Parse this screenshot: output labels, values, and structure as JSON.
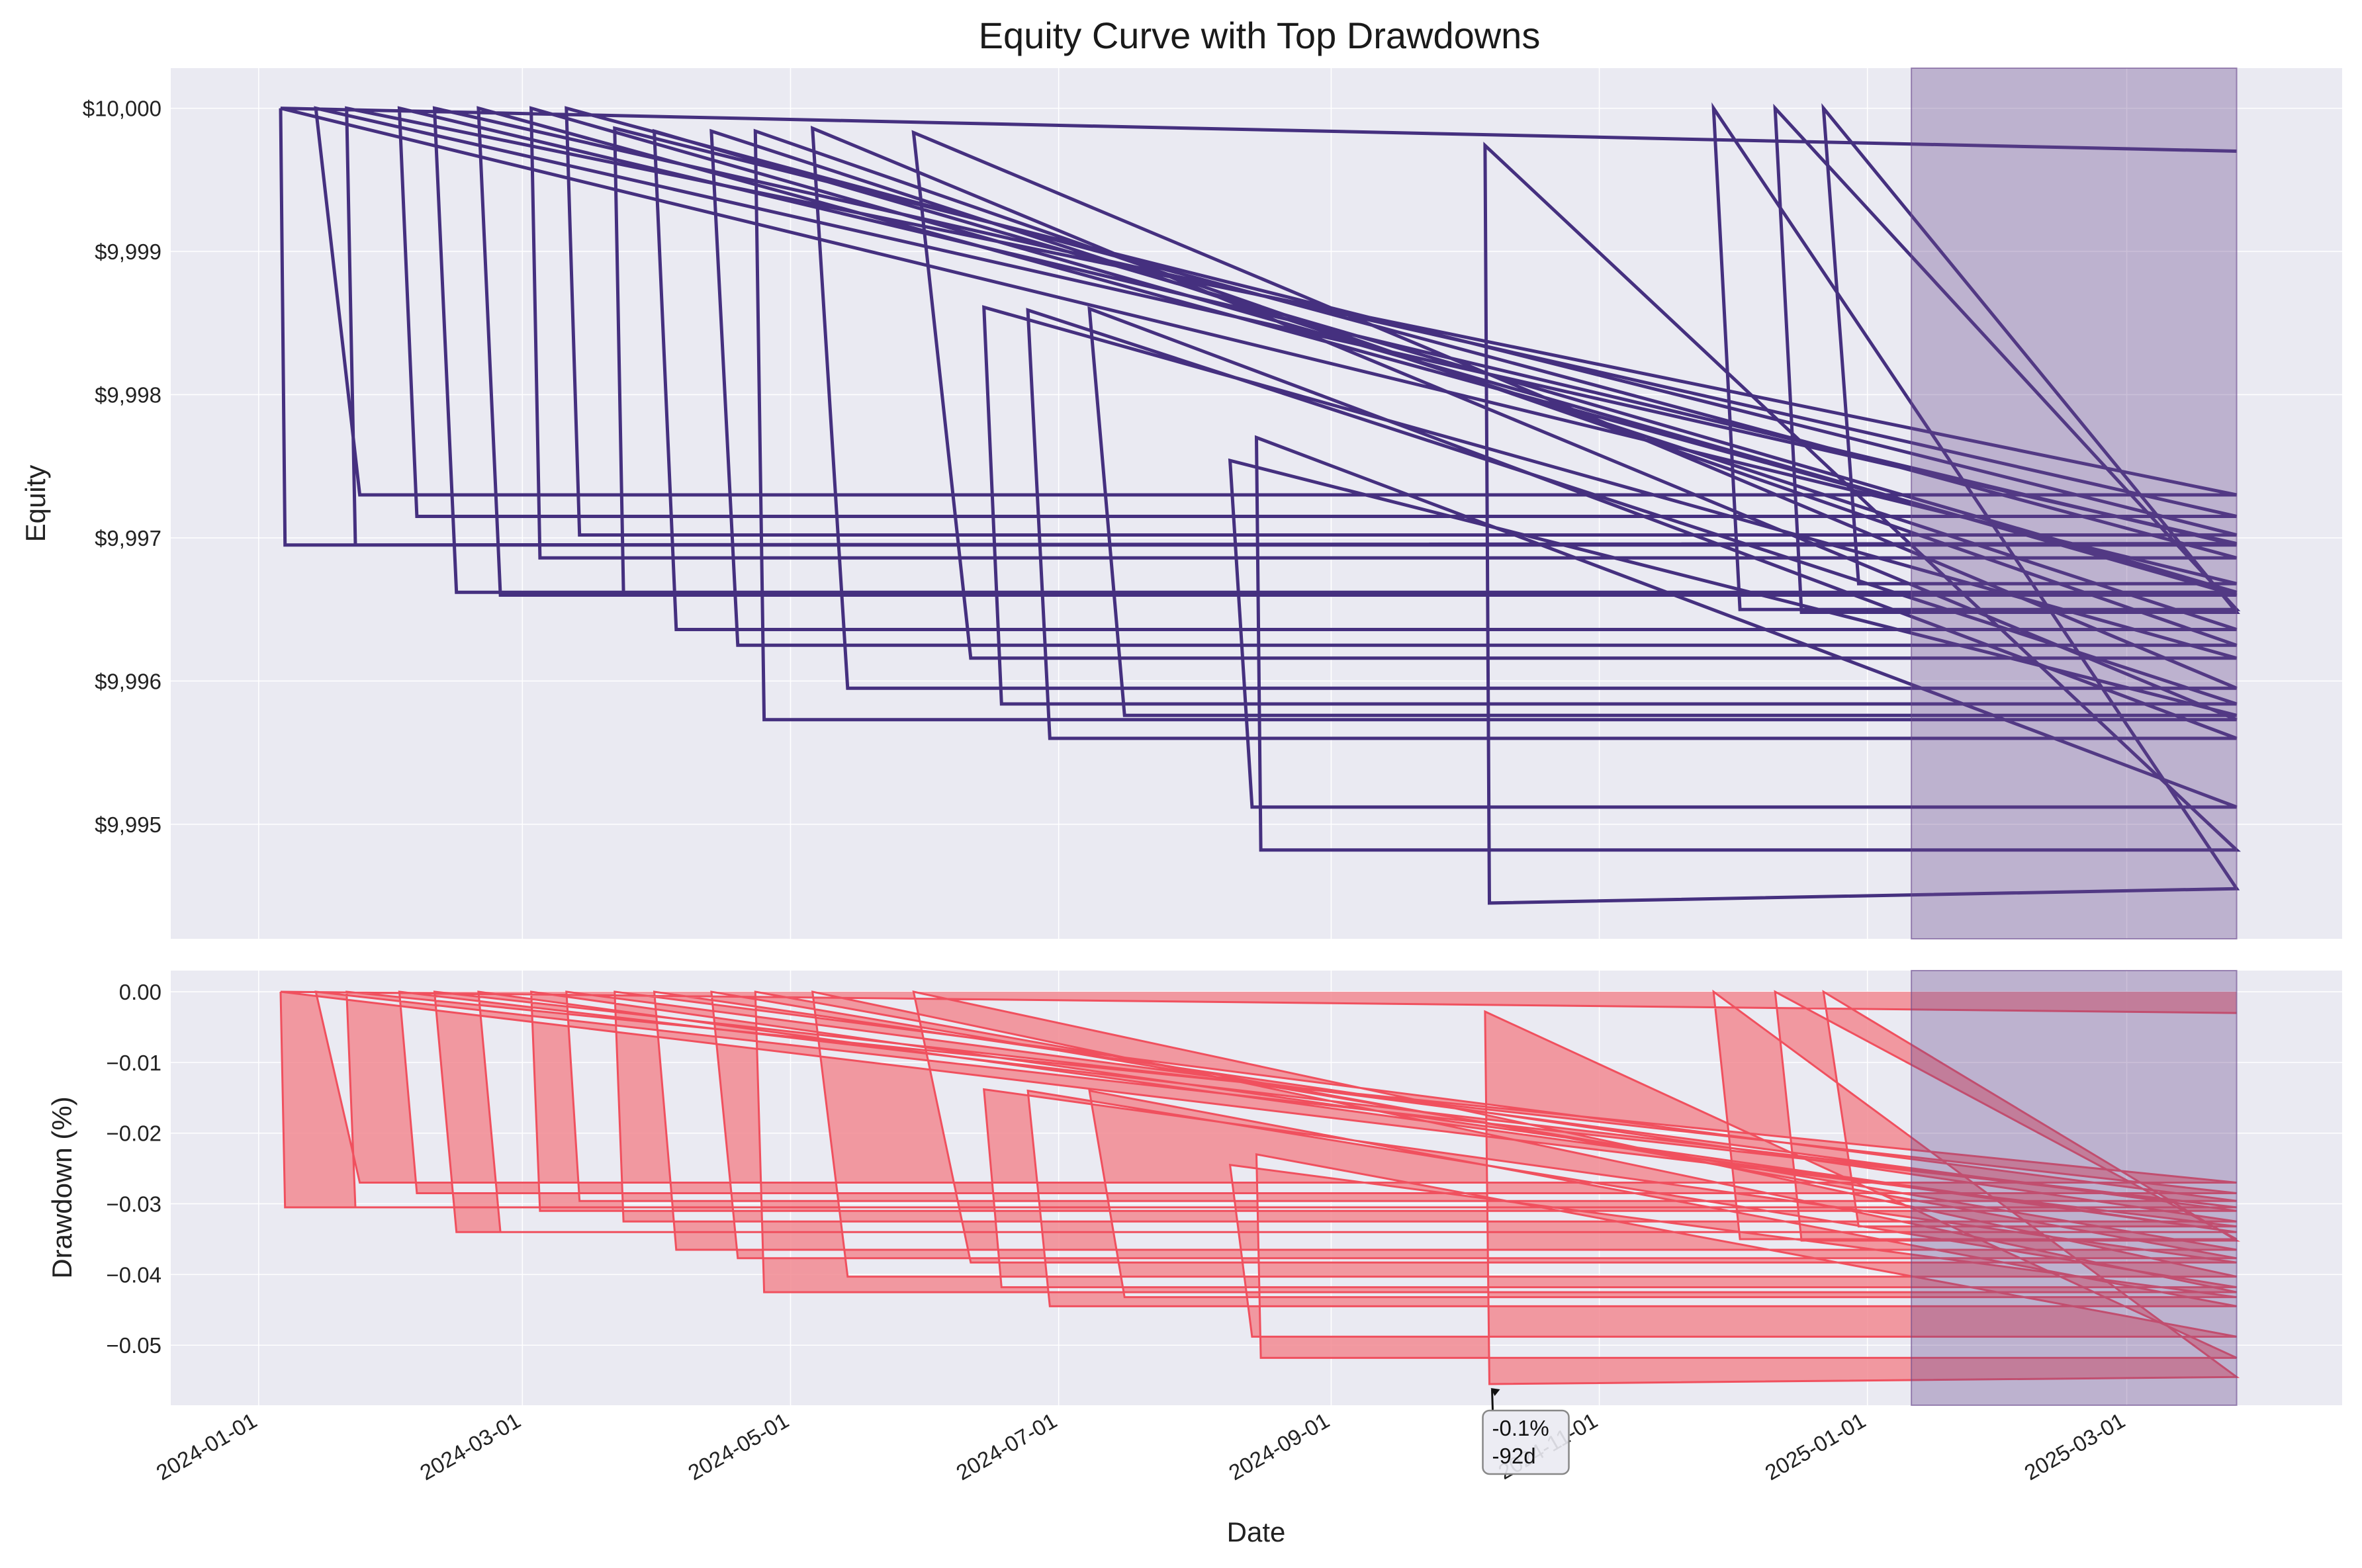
{
  "chart_data": [
    {
      "type": "line",
      "title": "Equity Curve with Top Drawdowns",
      "xlabel": "",
      "ylabel": "Equity",
      "xlim": [
        "2023-12-12",
        "2025-04-19"
      ],
      "ylim": [
        9994.2,
        10000.28
      ],
      "yticks": [
        9995,
        9996,
        9997,
        9998,
        9999,
        10000
      ],
      "ytick_labels": [
        "$9,995",
        "$9,996",
        "$9,997",
        "$9,998",
        "$9,999",
        "$10,000"
      ],
      "grid": true,
      "colors": {
        "line": "#45307f",
        "shade": "#6a4a8e",
        "background": "#eaeaf2"
      },
      "series": [
        {
          "values": [
            [
              "2024-01-06",
              10000.0
            ],
            [
              "2024-01-07",
              9996.95
            ],
            [
              "2025-03-26",
              9996.96
            ],
            [
              "2024-01-14",
              10000.0
            ],
            [
              "2024-01-24",
              9997.3
            ],
            [
              "2025-03-26",
              9997.3
            ],
            [
              "2024-01-21",
              10000.0
            ],
            [
              "2024-01-23",
              9996.95
            ],
            [
              "2025-03-26",
              9996.95
            ],
            [
              "2024-02-02",
              10000.0
            ],
            [
              "2024-02-06",
              9997.15
            ],
            [
              "2025-03-26",
              9997.15
            ],
            [
              "2024-02-10",
              10000.0
            ],
            [
              "2024-02-15",
              9996.62
            ],
            [
              "2025-03-26",
              9996.62
            ],
            [
              "2024-02-20",
              10000.0
            ],
            [
              "2024-02-25",
              9996.6
            ],
            [
              "2025-03-26",
              9996.6
            ],
            [
              "2024-03-03",
              10000.0
            ],
            [
              "2024-03-05",
              9996.86
            ],
            [
              "2025-03-26",
              9996.86
            ],
            [
              "2024-03-11",
              10000.0
            ],
            [
              "2024-03-14",
              9997.02
            ],
            [
              "2025-03-26",
              9997.02
            ],
            [
              "2024-03-22",
              9999.86
            ],
            [
              "2024-03-24",
              9996.62
            ],
            [
              "2025-03-26",
              9996.62
            ],
            [
              "2024-03-31",
              9999.84
            ],
            [
              "2024-04-05",
              9996.36
            ],
            [
              "2025-03-26",
              9996.36
            ],
            [
              "2024-04-13",
              9999.84
            ],
            [
              "2024-04-19",
              9996.25
            ],
            [
              "2025-03-26",
              9996.25
            ],
            [
              "2024-04-23",
              9999.84
            ],
            [
              "2024-04-25",
              9995.73
            ],
            [
              "2025-03-26",
              9995.73
            ],
            [
              "2024-05-06",
              9999.86
            ],
            [
              "2024-05-14",
              9995.95
            ],
            [
              "2025-03-26",
              9995.95
            ],
            [
              "2024-05-29",
              9999.83
            ],
            [
              "2024-06-11",
              9996.16
            ],
            [
              "2025-03-26",
              9996.16
            ],
            [
              "2024-06-14",
              9998.61
            ],
            [
              "2024-06-18",
              9995.84
            ],
            [
              "2025-03-26",
              9995.84
            ],
            [
              "2024-06-24",
              9998.59
            ],
            [
              "2024-06-29",
              9995.6
            ],
            [
              "2025-03-26",
              9995.6
            ],
            [
              "2024-07-08",
              9998.6
            ],
            [
              "2024-07-16",
              9995.76
            ],
            [
              "2025-03-26",
              9995.76
            ],
            [
              "2024-08-09",
              9997.54
            ],
            [
              "2024-08-14",
              9995.12
            ],
            [
              "2025-03-26",
              9995.12
            ],
            [
              "2024-08-15",
              9997.7
            ],
            [
              "2024-08-16",
              9994.82
            ],
            [
              "2025-03-26",
              9994.82
            ],
            [
              "2024-10-06",
              9999.74
            ],
            [
              "2024-10-07",
              9994.45
            ],
            [
              "2025-03-26",
              9994.55
            ],
            [
              "2024-11-27",
              10000.0
            ],
            [
              "2024-12-03",
              9996.5
            ],
            [
              "2025-03-26",
              9996.5
            ],
            [
              "2024-12-11",
              10000.0
            ],
            [
              "2024-12-17",
              9996.48
            ],
            [
              "2025-03-26",
              9996.48
            ],
            [
              "2024-12-22",
              10000.0
            ],
            [
              "2024-12-30",
              9996.68
            ],
            [
              "2025-03-26",
              9996.68
            ],
            [
              "2024-01-06",
              10000.0
            ],
            [
              "2025-03-26",
              9999.7
            ]
          ]
        }
      ],
      "shaded_region": [
        "2025-01-11",
        "2025-03-26"
      ]
    },
    {
      "type": "area",
      "title": "",
      "xlabel": "Date",
      "ylabel": "Drawdown (%)",
      "xlim": [
        "2023-12-12",
        "2025-04-19"
      ],
      "ylim": [
        -0.0585,
        0.003
      ],
      "yticks": [
        0.0,
        -0.01,
        -0.02,
        -0.03,
        -0.04,
        -0.05
      ],
      "ytick_labels": [
        "0.00",
        "−0.01",
        "−0.02",
        "−0.03",
        "−0.04",
        "−0.05"
      ],
      "xticks": [
        "2024-01-01",
        "2024-03-01",
        "2024-05-01",
        "2024-07-01",
        "2024-09-01",
        "2024-11-01",
        "2025-01-01",
        "2025-03-01"
      ],
      "xtick_labels": [
        "2024-01-01",
        "2024-03-01",
        "2024-05-01",
        "2024-07-01",
        "2024-09-01",
        "2024-11-01",
        "2025-01-01",
        "2025-03-01"
      ],
      "grid": true,
      "colors": {
        "fill": "#f28a92",
        "line": "#f0505e",
        "shade": "#6a4a8e",
        "background": "#eaeaf2"
      },
      "series": [
        {
          "values": [
            [
              "2024-01-06",
              0.0
            ],
            [
              "2024-01-07",
              -0.0305
            ],
            [
              "2025-03-26",
              -0.0305
            ],
            [
              "2024-01-14",
              0.0
            ],
            [
              "2024-01-24",
              -0.027
            ],
            [
              "2025-03-26",
              -0.027
            ],
            [
              "2024-01-21",
              0.0
            ],
            [
              "2024-01-23",
              -0.0305
            ],
            [
              "2025-03-26",
              -0.0305
            ],
            [
              "2024-02-02",
              0.0
            ],
            [
              "2024-02-06",
              -0.0285
            ],
            [
              "2025-03-26",
              -0.0285
            ],
            [
              "2024-02-10",
              0.0
            ],
            [
              "2024-02-15",
              -0.034
            ],
            [
              "2025-03-26",
              -0.034
            ],
            [
              "2024-02-20",
              0.0
            ],
            [
              "2024-02-25",
              -0.034
            ],
            [
              "2025-03-26",
              -0.034
            ],
            [
              "2024-03-03",
              0.0
            ],
            [
              "2024-03-05",
              -0.031
            ],
            [
              "2025-03-26",
              -0.031
            ],
            [
              "2024-03-11",
              0.0
            ],
            [
              "2024-03-14",
              -0.0296
            ],
            [
              "2025-03-26",
              -0.0296
            ],
            [
              "2024-03-22",
              0.0
            ],
            [
              "2024-03-24",
              -0.0325
            ],
            [
              "2025-03-26",
              -0.0325
            ],
            [
              "2024-03-31",
              0.0
            ],
            [
              "2024-04-05",
              -0.0365
            ],
            [
              "2025-03-26",
              -0.0365
            ],
            [
              "2024-04-13",
              0.0
            ],
            [
              "2024-04-19",
              -0.0377
            ],
            [
              "2025-03-26",
              -0.0377
            ],
            [
              "2024-04-23",
              0.0
            ],
            [
              "2024-04-25",
              -0.0425
            ],
            [
              "2025-03-26",
              -0.0425
            ],
            [
              "2024-05-06",
              0.0
            ],
            [
              "2024-05-14",
              -0.0403
            ],
            [
              "2025-03-26",
              -0.0403
            ],
            [
              "2024-05-29",
              0.0
            ],
            [
              "2024-06-11",
              -0.0383
            ],
            [
              "2025-03-26",
              -0.0383
            ],
            [
              "2024-06-14",
              -0.0138
            ],
            [
              "2024-06-18",
              -0.0418
            ],
            [
              "2025-03-26",
              -0.0418
            ],
            [
              "2024-06-24",
              -0.014
            ],
            [
              "2024-06-29",
              -0.0445
            ],
            [
              "2025-03-26",
              -0.0445
            ],
            [
              "2024-07-08",
              -0.014
            ],
            [
              "2024-07-16",
              -0.0432
            ],
            [
              "2025-03-26",
              -0.0432
            ],
            [
              "2024-08-09",
              -0.0245
            ],
            [
              "2024-08-14",
              -0.0488
            ],
            [
              "2025-03-26",
              -0.0488
            ],
            [
              "2024-08-15",
              -0.023
            ],
            [
              "2024-08-16",
              -0.0518
            ],
            [
              "2025-03-26",
              -0.0518
            ],
            [
              "2024-10-06",
              -0.0028
            ],
            [
              "2024-10-07",
              -0.0555
            ],
            [
              "2025-03-26",
              -0.0545
            ],
            [
              "2024-11-27",
              0.0
            ],
            [
              "2024-12-03",
              -0.035
            ],
            [
              "2025-03-26",
              -0.035
            ],
            [
              "2024-12-11",
              0.0
            ],
            [
              "2024-12-17",
              -0.0352
            ],
            [
              "2025-03-26",
              -0.0352
            ],
            [
              "2024-12-22",
              0.0
            ],
            [
              "2024-12-30",
              -0.0332
            ],
            [
              "2025-03-26",
              -0.0332
            ],
            [
              "2024-01-06",
              0.0
            ],
            [
              "2025-03-26",
              -0.003
            ]
          ]
        }
      ],
      "shaded_region": [
        "2025-01-11",
        "2025-03-26"
      ],
      "annotation": {
        "date": "2024-10-07",
        "value": -0.0555,
        "lines": [
          "-0.1%",
          "-92d"
        ]
      }
    }
  ]
}
